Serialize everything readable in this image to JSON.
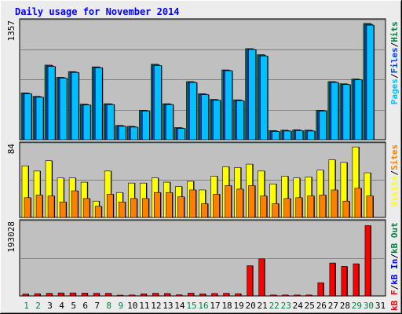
{
  "title": "Daily usage for November 2014",
  "colors": {
    "pages": "#00c0ff",
    "files": "#0040ff",
    "hits": "#008040",
    "visits": "#ffff00",
    "sites": "#ff8000",
    "kbin": "#0000ff",
    "kbout": "#008040",
    "kbf": "#ff0000",
    "title": "#0000ff"
  },
  "chart_data": [
    {
      "type": "bar",
      "panel": "hits-files-pages",
      "ylabel": "1357",
      "ymax": 1357,
      "legend": [
        "Pages",
        "/",
        "Files",
        "/",
        "Hits"
      ],
      "categories": [
        "1",
        "2",
        "3",
        "4",
        "5",
        "6",
        "7",
        "8",
        "9",
        "10",
        "11",
        "12",
        "13",
        "14",
        "15",
        "16",
        "17",
        "18",
        "19",
        "20",
        "21",
        "22",
        "23",
        "24",
        "25",
        "26",
        "27",
        "28",
        "29",
        "30",
        "31"
      ],
      "series": [
        {
          "name": "Hits",
          "values": [
            540,
            500,
            860,
            720,
            785,
            410,
            840,
            415,
            165,
            155,
            340,
            870,
            415,
            140,
            670,
            530,
            465,
            805,
            460,
            1050,
            980,
            105,
            110,
            115,
            110,
            340,
            670,
            645,
            700,
            1340,
            0
          ]
        },
        {
          "name": "Files",
          "values": [
            535,
            495,
            850,
            715,
            780,
            405,
            835,
            410,
            160,
            150,
            335,
            860,
            410,
            135,
            665,
            525,
            460,
            800,
            455,
            1045,
            970,
            100,
            105,
            110,
            105,
            335,
            665,
            640,
            695,
            1330,
            0
          ]
        },
        {
          "name": "Pages",
          "values": [
            530,
            490,
            845,
            710,
            775,
            400,
            830,
            405,
            155,
            145,
            330,
            855,
            405,
            130,
            660,
            520,
            455,
            795,
            450,
            1040,
            965,
            95,
            100,
            105,
            100,
            330,
            660,
            635,
            690,
            1320,
            0
          ]
        }
      ]
    },
    {
      "type": "bar",
      "panel": "visits-sites",
      "ylabel": "84",
      "ymax": 84,
      "legend": [
        "Visits",
        "/",
        "Sites"
      ],
      "categories": [
        "1",
        "2",
        "3",
        "4",
        "5",
        "6",
        "7",
        "8",
        "9",
        "10",
        "11",
        "12",
        "13",
        "14",
        "15",
        "16",
        "17",
        "18",
        "19",
        "20",
        "21",
        "22",
        "23",
        "24",
        "25",
        "26",
        "27",
        "28",
        "29",
        "30",
        "31"
      ],
      "series": [
        {
          "name": "Visits",
          "values": [
            60,
            54,
            66,
            46,
            46,
            41,
            19,
            54,
            29,
            40,
            40,
            46,
            41,
            36,
            42,
            32,
            48,
            59,
            58,
            62,
            54,
            39,
            48,
            46,
            47,
            55,
            67,
            64,
            82,
            52,
            0
          ]
        },
        {
          "name": "Sites",
          "values": [
            23,
            26,
            25,
            18,
            31,
            22,
            13,
            27,
            18,
            22,
            22,
            29,
            29,
            24,
            32,
            16,
            27,
            37,
            33,
            37,
            25,
            16,
            22,
            23,
            25,
            26,
            32,
            19,
            34,
            25,
            0
          ]
        }
      ]
    },
    {
      "type": "bar",
      "panel": "kbytes",
      "ylabel": "193028",
      "ymax": 193028,
      "legend": [
        "kB F",
        "/",
        "kB In",
        "/",
        "kB Out"
      ],
      "categories": [
        "1",
        "2",
        "3",
        "4",
        "5",
        "6",
        "7",
        "8",
        "9",
        "10",
        "11",
        "12",
        "13",
        "14",
        "15",
        "16",
        "17",
        "18",
        "19",
        "20",
        "21",
        "22",
        "23",
        "24",
        "25",
        "26",
        "27",
        "28",
        "29",
        "30",
        "31"
      ],
      "series": [
        {
          "name": "kB F",
          "values": [
            5000,
            6000,
            7000,
            8000,
            8000,
            7500,
            7000,
            7000,
            2000,
            2500,
            5500,
            7000,
            6500,
            3000,
            7500,
            5500,
            6500,
            7000,
            6000,
            80000,
            98000,
            2500,
            2500,
            2500,
            2500,
            35000,
            87000,
            78000,
            85000,
            186000,
            0
          ]
        }
      ]
    }
  ],
  "xlabels": [
    {
      "label": "1",
      "weekend": true
    },
    {
      "label": "2",
      "weekend": true
    },
    {
      "label": "3",
      "weekend": false
    },
    {
      "label": "4",
      "weekend": false
    },
    {
      "label": "5",
      "weekend": false
    },
    {
      "label": "6",
      "weekend": false
    },
    {
      "label": "7",
      "weekend": false
    },
    {
      "label": "8",
      "weekend": true
    },
    {
      "label": "9",
      "weekend": true
    },
    {
      "label": "10",
      "weekend": false
    },
    {
      "label": "11",
      "weekend": false
    },
    {
      "label": "12",
      "weekend": false
    },
    {
      "label": "13",
      "weekend": false
    },
    {
      "label": "14",
      "weekend": false
    },
    {
      "label": "15",
      "weekend": true
    },
    {
      "label": "16",
      "weekend": true
    },
    {
      "label": "17",
      "weekend": false
    },
    {
      "label": "18",
      "weekend": false
    },
    {
      "label": "19",
      "weekend": false
    },
    {
      "label": "20",
      "weekend": false
    },
    {
      "label": "21",
      "weekend": false
    },
    {
      "label": "22",
      "weekend": true
    },
    {
      "label": "23",
      "weekend": true
    },
    {
      "label": "24",
      "weekend": false
    },
    {
      "label": "25",
      "weekend": false
    },
    {
      "label": "26",
      "weekend": false
    },
    {
      "label": "27",
      "weekend": false
    },
    {
      "label": "28",
      "weekend": false
    },
    {
      "label": "29",
      "weekend": true
    },
    {
      "label": "30",
      "weekend": true
    },
    {
      "label": "31",
      "weekend": false
    }
  ]
}
